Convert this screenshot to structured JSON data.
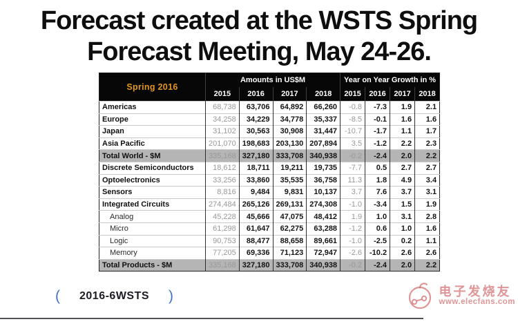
{
  "title": {
    "line1": "Forecast created at the WSTS Spring",
    "line2": "Forecast Meeting, May 24-26."
  },
  "table": {
    "corner_label": "Spring 2016",
    "amounts_header": "Amounts in US$M",
    "growth_header": "Year on Year Growth in %",
    "years": [
      "2015",
      "2016",
      "2017",
      "2018"
    ],
    "rows": [
      {
        "label": "Americas",
        "style": "main",
        "amounts": [
          "68,738",
          "63,706",
          "64,892",
          "66,260"
        ],
        "growth": [
          "-0.8",
          "-7.3",
          "1.9",
          "2.1"
        ]
      },
      {
        "label": "Europe",
        "style": "main",
        "amounts": [
          "34,258",
          "34,229",
          "34,778",
          "35,337"
        ],
        "growth": [
          "-8.5",
          "-0.1",
          "1.6",
          "1.6"
        ]
      },
      {
        "label": "Japan",
        "style": "main",
        "amounts": [
          "31,102",
          "30,563",
          "30,908",
          "31,447"
        ],
        "growth": [
          "-10.7",
          "-1.7",
          "1.1",
          "1.7"
        ]
      },
      {
        "label": "Asia Pacific",
        "style": "main",
        "amounts": [
          "201,070",
          "198,683",
          "203,130",
          "207,894"
        ],
        "growth": [
          "3.5",
          "-1.2",
          "2.2",
          "2.3"
        ]
      },
      {
        "label": "Total World - $M",
        "style": "total",
        "amounts": [
          "335,168",
          "327,180",
          "333,708",
          "340,938"
        ],
        "growth": [
          "-0.2",
          "-2.4",
          "2.0",
          "2.2"
        ]
      },
      {
        "label": "Discrete Semiconductors",
        "style": "main",
        "amounts": [
          "18,612",
          "18,711",
          "19,211",
          "19,735"
        ],
        "growth": [
          "-7.7",
          "0.5",
          "2.7",
          "2.7"
        ]
      },
      {
        "label": "Optoelectronics",
        "style": "main",
        "amounts": [
          "33,256",
          "33,860",
          "35,535",
          "36,758"
        ],
        "growth": [
          "11.3",
          "1.8",
          "4.9",
          "3.4"
        ]
      },
      {
        "label": "Sensors",
        "style": "main",
        "amounts": [
          "8,816",
          "9,484",
          "9,831",
          "10,137"
        ],
        "growth": [
          "3.7",
          "7.6",
          "3.7",
          "3.1"
        ]
      },
      {
        "label": "Integrated Circuits",
        "style": "main",
        "amounts": [
          "274,484",
          "265,126",
          "269,131",
          "274,308"
        ],
        "growth": [
          "-1.0",
          "-3.4",
          "1.5",
          "1.9"
        ]
      },
      {
        "label": "Analog",
        "style": "sub",
        "amounts": [
          "45,228",
          "45,666",
          "47,075",
          "48,412"
        ],
        "growth": [
          "1.9",
          "1.0",
          "3.1",
          "2.8"
        ]
      },
      {
        "label": "Micro",
        "style": "sub",
        "amounts": [
          "61,298",
          "61,647",
          "62,275",
          "63,288"
        ],
        "growth": [
          "-1.2",
          "0.6",
          "1.0",
          "1.6"
        ]
      },
      {
        "label": "Logic",
        "style": "sub",
        "amounts": [
          "90,753",
          "88,477",
          "88,658",
          "89,661"
        ],
        "growth": [
          "-1.0",
          "-2.5",
          "0.2",
          "1.1"
        ]
      },
      {
        "label": "Memory",
        "style": "sub",
        "amounts": [
          "77,205",
          "69,336",
          "71,123",
          "72,947"
        ],
        "growth": [
          "-2.6",
          "-10.2",
          "2.6",
          "2.6"
        ]
      },
      {
        "label": "Total Products - $M",
        "style": "total",
        "amounts": [
          "335,168",
          "327,180",
          "333,708",
          "340,938"
        ],
        "growth": [
          "-0.2",
          "-2.4",
          "2.0",
          "2.2"
        ]
      }
    ]
  },
  "footer": {
    "open_bracket": "(",
    "label": "2016-6WSTS",
    "close_bracket": ")"
  },
  "watermark": {
    "name": "电子发烧友",
    "url": "www.elecfans.com"
  },
  "colors": {
    "header_bg": "#070707",
    "header_accent_orange": "#e2951f",
    "total_row_bg": "#b5b5b5",
    "muted_2015_value": "#989898",
    "footer_bracket_blue": "#4472c4",
    "watermark_red": "#cb5454"
  }
}
